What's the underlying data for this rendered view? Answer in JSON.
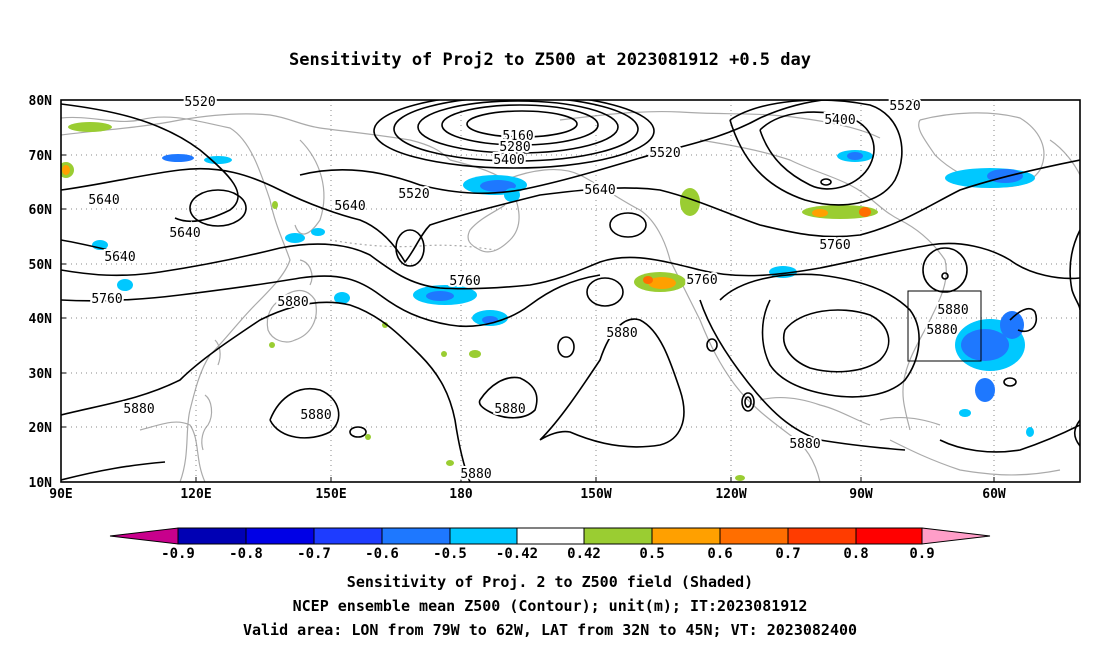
{
  "title": "Sensitivity of Proj2 to Z500 at 2023081912 +0.5 day",
  "lat_labels": [
    "80N",
    "70N",
    "60N",
    "50N",
    "40N",
    "30N",
    "20N",
    "10N"
  ],
  "lon_labels": [
    "90E",
    "120E",
    "150E",
    "180",
    "150W",
    "120W",
    "90W",
    "60W"
  ],
  "contour_labels": [
    "5520",
    "5160",
    "5280",
    "5400",
    "5520",
    "5400",
    "5640",
    "5520",
    "5640",
    "5520",
    "5640",
    "5640",
    "5640",
    "5760",
    "5760",
    "5760",
    "5760",
    "5880",
    "5880",
    "5880",
    "5880",
    "5880",
    "5880",
    "5880",
    "5880",
    "5880"
  ],
  "colorbar": {
    "labels": [
      "-0.9",
      "-0.8",
      "-0.7",
      "-0.6",
      "-0.5",
      "-0.42",
      "0.42",
      "0.5",
      "0.6",
      "0.7",
      "0.8",
      "0.9"
    ],
    "colors": [
      "#c8008c",
      "#0000b4",
      "#0000e6",
      "#1e3cff",
      "#1e78ff",
      "#00c8ff",
      "#ffffff",
      "#9acd32",
      "#ffa000",
      "#ff6e00",
      "#ff3c00",
      "#ff0000",
      "#ff9ec8"
    ]
  },
  "captions": [
    "Sensitivity of Proj. 2 to Z500 field (Shaded)",
    "NCEP ensemble mean Z500 (Contour); unit(m); IT:2023081912",
    "Valid area: LON from 79W to 62W, LAT from 32N to 45N; VT: 2023082400"
  ],
  "colors": {
    "coast": "#aaaaaa",
    "contour": "#000000",
    "grid": "#888888"
  }
}
